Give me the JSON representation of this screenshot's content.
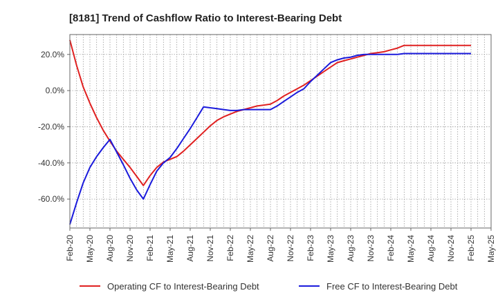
{
  "chart_data": {
    "type": "line",
    "title": "[8181]  Trend of Cashflow Ratio to Interest-Bearing Debt",
    "xlabel": "",
    "ylabel": "",
    "x_ticks": [
      "Feb-20",
      "May-20",
      "Aug-20",
      "Nov-20",
      "Feb-21",
      "May-21",
      "Aug-21",
      "Nov-21",
      "Feb-22",
      "May-22",
      "Aug-22",
      "Nov-22",
      "Feb-23",
      "May-23",
      "Aug-23",
      "Nov-23",
      "Feb-24",
      "May-24",
      "Aug-24",
      "Nov-24",
      "Feb-25",
      "May-25"
    ],
    "y_ticks": [
      "20.0%",
      "0.0%",
      "-20.0%",
      "-40.0%",
      "-60.0%"
    ],
    "y_tick_values": [
      20,
      0,
      -20,
      -40,
      -60
    ],
    "ylim": [
      -76,
      31
    ],
    "x_range_months": [
      0,
      63
    ],
    "grid": true,
    "legend_position": "bottom",
    "series": [
      {
        "name": "Operating CF to Interest-Bearing Debt",
        "color": "#e02020",
        "x_months": [
          0,
          1,
          2,
          3,
          4,
          5,
          6,
          7,
          8,
          9,
          10,
          11,
          12,
          13,
          14,
          15,
          16,
          17,
          18,
          19,
          20,
          21,
          22,
          23,
          24,
          25,
          26,
          27,
          28,
          29,
          30,
          31,
          32,
          33,
          34,
          35,
          36,
          37,
          38,
          39,
          40,
          41,
          42,
          43,
          44,
          45,
          46,
          47,
          48,
          49,
          50,
          51,
          52,
          53,
          54,
          55,
          56,
          57,
          58,
          59,
          60
        ],
        "values": [
          28,
          14,
          2,
          -7,
          -15,
          -22,
          -28,
          -33.5,
          -38,
          -42.5,
          -47.5,
          -52.5,
          -47,
          -42.5,
          -39.5,
          -38,
          -36.5,
          -33.5,
          -30,
          -26.5,
          -23,
          -19.5,
          -16.5,
          -14.5,
          -13,
          -11.5,
          -10.5,
          -9.5,
          -8.5,
          -8,
          -7.5,
          -5.5,
          -3,
          -1,
          1,
          3,
          5.5,
          8,
          10.5,
          13,
          15.5,
          16.5,
          17.5,
          18.5,
          19.5,
          20.5,
          21,
          21.5,
          22.5,
          23.5,
          25,
          25,
          25,
          25,
          25,
          25,
          25,
          25,
          25,
          25,
          25
        ]
      },
      {
        "name": "Free CF to Interest-Bearing Debt",
        "color": "#1a1adc",
        "x_months": [
          0,
          1,
          2,
          3,
          4,
          5,
          6,
          7,
          8,
          9,
          10,
          11,
          12,
          13,
          14,
          15,
          16,
          17,
          18,
          19,
          20,
          21,
          22,
          23,
          24,
          25,
          26,
          27,
          28,
          29,
          30,
          31,
          32,
          33,
          34,
          35,
          36,
          37,
          38,
          39,
          40,
          41,
          42,
          43,
          44,
          45,
          46,
          47,
          48,
          49,
          50,
          51,
          52,
          53,
          54,
          55,
          56,
          57,
          58,
          59,
          60
        ],
        "values": [
          -74,
          -62,
          -51,
          -42.5,
          -36.5,
          -31.5,
          -27,
          -34,
          -41,
          -48.5,
          -55,
          -60,
          -52,
          -44.5,
          -40,
          -37,
          -32,
          -26.5,
          -21,
          -15,
          -9,
          -9.5,
          -10,
          -10.5,
          -11,
          -11,
          -10.5,
          -10.5,
          -10.5,
          -10.5,
          -10.5,
          -8.5,
          -6,
          -3.5,
          -1,
          1,
          5,
          8.5,
          12,
          15.5,
          17,
          18,
          18.5,
          19.5,
          20,
          20,
          20,
          20,
          20,
          20,
          20.5,
          20.5,
          20.5,
          20.5,
          20.5,
          20.5,
          20.5,
          20.5,
          20.5,
          20.5,
          20.5
        ]
      }
    ]
  }
}
